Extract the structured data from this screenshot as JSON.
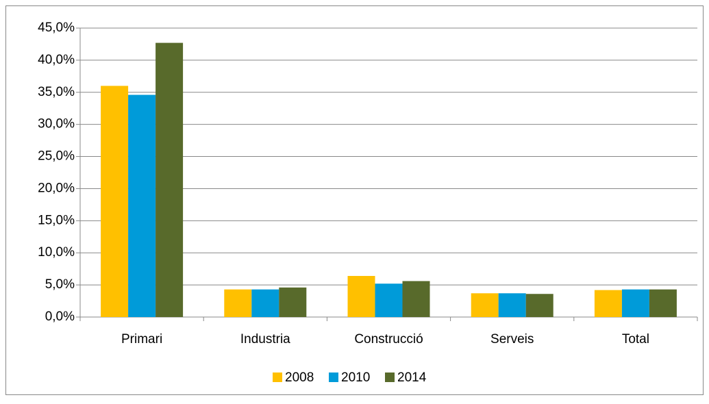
{
  "chart_data": {
    "type": "bar",
    "categories": [
      "Primari",
      "Industria",
      "Construcció",
      "Serveis",
      "Total"
    ],
    "series": [
      {
        "name": "2008",
        "color": "#ffc000",
        "values": [
          36.0,
          4.3,
          6.4,
          3.7,
          4.2
        ]
      },
      {
        "name": "2010",
        "color": "#009bd9",
        "values": [
          34.6,
          4.3,
          5.2,
          3.7,
          4.3
        ]
      },
      {
        "name": "2014",
        "color": "#586a2b",
        "values": [
          42.7,
          4.6,
          5.6,
          3.6,
          4.3
        ]
      }
    ],
    "ylim": [
      0,
      45
    ],
    "yticks": [
      {
        "value": 0,
        "label": "0,0%"
      },
      {
        "value": 5,
        "label": "5,0%"
      },
      {
        "value": 10,
        "label": "10,0%"
      },
      {
        "value": 15,
        "label": "15,0%"
      },
      {
        "value": 20,
        "label": "20,0%"
      },
      {
        "value": 25,
        "label": "25,0%"
      },
      {
        "value": 30,
        "label": "30,0%"
      },
      {
        "value": 35,
        "label": "35,0%"
      },
      {
        "value": 40,
        "label": "40,0%"
      },
      {
        "value": 45,
        "label": "45,0%"
      }
    ],
    "grid": true,
    "legend": "bottom"
  }
}
